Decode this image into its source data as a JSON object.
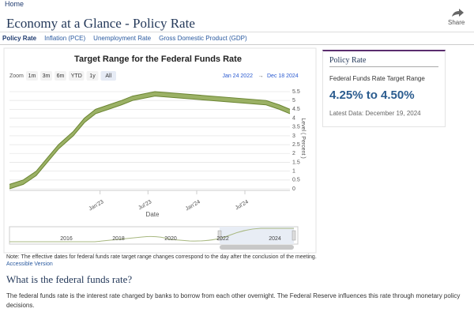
{
  "header": {
    "home": "Home",
    "title": "Economy at a Glance - Policy Rate",
    "share": "Share"
  },
  "tabs": [
    "Policy Rate",
    "Inflation (PCE)",
    "Unemployment Rate",
    "Gross Domestic Product (GDP)"
  ],
  "chart_data": {
    "type": "arearange",
    "title": "Target Range for the Federal Funds Rate",
    "zoom_label": "Zoom",
    "zoom_buttons": [
      "1m",
      "3m",
      "6m",
      "YTD",
      "1y",
      "All"
    ],
    "range_start": "Jan 24 2022",
    "range_separator": "→",
    "range_end": "Dec 18 2024",
    "x_label": "Date",
    "y_label": "Level ( Percent )",
    "x": [
      "2022-01-24",
      "2022-03-17",
      "2022-05-05",
      "2022-06-16",
      "2022-07-28",
      "2022-09-22",
      "2022-11-03",
      "2022-12-15",
      "2023-02-02",
      "2023-03-23",
      "2023-05-04",
      "2023-07-27",
      "2024-09-19",
      "2024-11-08",
      "2024-12-18"
    ],
    "series": [
      {
        "color": "#8aa34a",
        "values": [
          0,
          0.25,
          0.75,
          1.5,
          2.25,
          3,
          3.75,
          4.25,
          4.5,
          4.75,
          5,
          5.25,
          4.75,
          4.5,
          4.25
        ]
      },
      {
        "color": "#8aa34a",
        "values": [
          0.25,
          0.5,
          1,
          1.75,
          2.5,
          3.25,
          4,
          4.5,
          4.75,
          5,
          5.25,
          5.5,
          5,
          4.75,
          4.5
        ]
      }
    ],
    "xlim": [
      "2022-01-24",
      "2024-12-18"
    ],
    "xticks": [
      {
        "value": "2023-01-01",
        "label": "Jan'23"
      },
      {
        "value": "2023-07-01",
        "label": "Jul'23"
      },
      {
        "value": "2024-01-01",
        "label": "Jan'24"
      },
      {
        "value": "2024-07-01",
        "label": "Jul'24"
      }
    ],
    "ylim": [
      0,
      5.5
    ],
    "yticks": [
      0,
      0.5,
      1,
      1.5,
      2,
      2.5,
      3,
      3.5,
      4,
      4.5,
      5,
      5.5
    ],
    "grid": true,
    "navigator_labels": [
      "2016",
      "2018",
      "2020",
      "2022",
      "2024"
    ]
  },
  "note": "Note: The effective dates for federal funds rate target range changes correspond to the day after the conclusion of the meeting.",
  "accessible_link": "Accessible Version",
  "card": {
    "header": "Policy Rate",
    "label": "Federal Funds Rate Target Range",
    "value": "4.25% to 4.50%",
    "latest": "Latest Data: December 19, 2024"
  },
  "section": {
    "heading": "What is the federal funds rate?",
    "body": "The federal funds rate is the interest rate charged by banks to borrow from each other overnight. The Federal Reserve influences this rate through monetary policy decisions."
  }
}
